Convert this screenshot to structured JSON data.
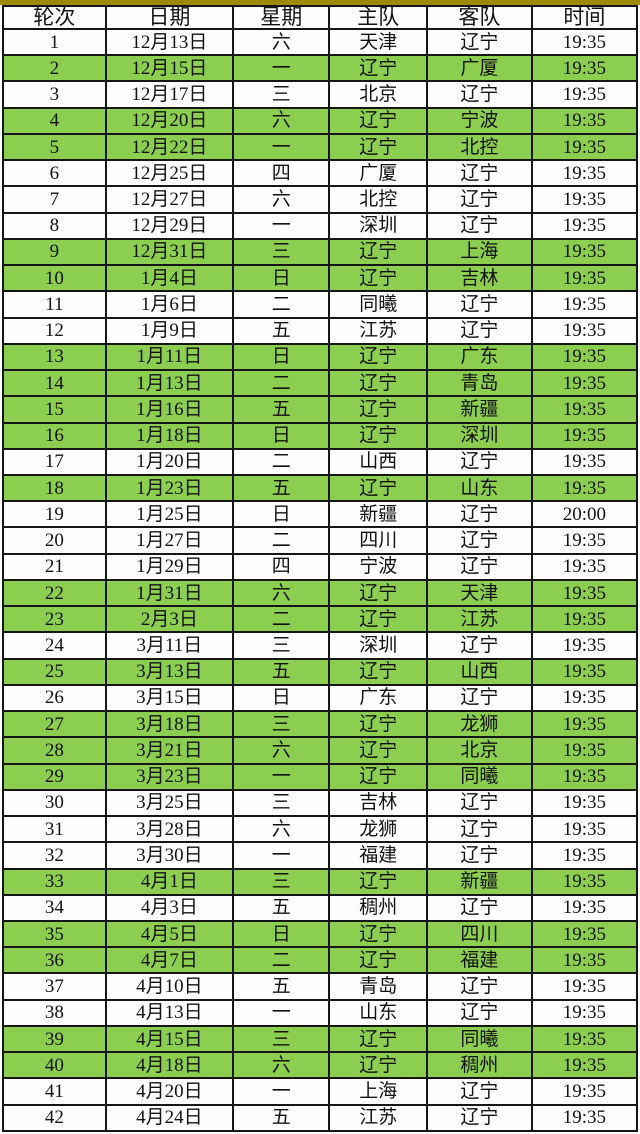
{
  "page": {
    "accent_bar_color": "#9C8A00",
    "highlight_color": "#8CCE4F",
    "highlight_meaning": "home games of 辽宁"
  },
  "table": {
    "headers": [
      "轮次",
      "日期",
      "星期",
      "主队",
      "客队",
      "时间"
    ],
    "rows": [
      {
        "round": "1",
        "date": "12月13日",
        "weekday": "六",
        "home": "天津",
        "away": "辽宁",
        "time": "19:35",
        "highlight": false
      },
      {
        "round": "2",
        "date": "12月15日",
        "weekday": "一",
        "home": "辽宁",
        "away": "广厦",
        "time": "19:35",
        "highlight": true
      },
      {
        "round": "3",
        "date": "12月17日",
        "weekday": "三",
        "home": "北京",
        "away": "辽宁",
        "time": "19:35",
        "highlight": false
      },
      {
        "round": "4",
        "date": "12月20日",
        "weekday": "六",
        "home": "辽宁",
        "away": "宁波",
        "time": "19:35",
        "highlight": true
      },
      {
        "round": "5",
        "date": "12月22日",
        "weekday": "一",
        "home": "辽宁",
        "away": "北控",
        "time": "19:35",
        "highlight": true
      },
      {
        "round": "6",
        "date": "12月25日",
        "weekday": "四",
        "home": "广厦",
        "away": "辽宁",
        "time": "19:35",
        "highlight": false
      },
      {
        "round": "7",
        "date": "12月27日",
        "weekday": "六",
        "home": "北控",
        "away": "辽宁",
        "time": "19:35",
        "highlight": false
      },
      {
        "round": "8",
        "date": "12月29日",
        "weekday": "一",
        "home": "深圳",
        "away": "辽宁",
        "time": "19:35",
        "highlight": false
      },
      {
        "round": "9",
        "date": "12月31日",
        "weekday": "三",
        "home": "辽宁",
        "away": "上海",
        "time": "19:35",
        "highlight": true
      },
      {
        "round": "10",
        "date": "1月4日",
        "weekday": "日",
        "home": "辽宁",
        "away": "吉林",
        "time": "19:35",
        "highlight": true
      },
      {
        "round": "11",
        "date": "1月6日",
        "weekday": "二",
        "home": "同曦",
        "away": "辽宁",
        "time": "19:35",
        "highlight": false
      },
      {
        "round": "12",
        "date": "1月9日",
        "weekday": "五",
        "home": "江苏",
        "away": "辽宁",
        "time": "19:35",
        "highlight": false
      },
      {
        "round": "13",
        "date": "1月11日",
        "weekday": "日",
        "home": "辽宁",
        "away": "广东",
        "time": "19:35",
        "highlight": true
      },
      {
        "round": "14",
        "date": "1月13日",
        "weekday": "二",
        "home": "辽宁",
        "away": "青岛",
        "time": "19:35",
        "highlight": true
      },
      {
        "round": "15",
        "date": "1月16日",
        "weekday": "五",
        "home": "辽宁",
        "away": "新疆",
        "time": "19:35",
        "highlight": true
      },
      {
        "round": "16",
        "date": "1月18日",
        "weekday": "日",
        "home": "辽宁",
        "away": "深圳",
        "time": "19:35",
        "highlight": true
      },
      {
        "round": "17",
        "date": "1月20日",
        "weekday": "二",
        "home": "山西",
        "away": "辽宁",
        "time": "19:35",
        "highlight": false
      },
      {
        "round": "18",
        "date": "1月23日",
        "weekday": "五",
        "home": "辽宁",
        "away": "山东",
        "time": "19:35",
        "highlight": true
      },
      {
        "round": "19",
        "date": "1月25日",
        "weekday": "日",
        "home": "新疆",
        "away": "辽宁",
        "time": "20:00",
        "highlight": false
      },
      {
        "round": "20",
        "date": "1月27日",
        "weekday": "二",
        "home": "四川",
        "away": "辽宁",
        "time": "19:35",
        "highlight": false
      },
      {
        "round": "21",
        "date": "1月29日",
        "weekday": "四",
        "home": "宁波",
        "away": "辽宁",
        "time": "19:35",
        "highlight": false
      },
      {
        "round": "22",
        "date": "1月31日",
        "weekday": "六",
        "home": "辽宁",
        "away": "天津",
        "time": "19:35",
        "highlight": true
      },
      {
        "round": "23",
        "date": "2月3日",
        "weekday": "二",
        "home": "辽宁",
        "away": "江苏",
        "time": "19:35",
        "highlight": true
      },
      {
        "round": "24",
        "date": "3月11日",
        "weekday": "三",
        "home": "深圳",
        "away": "辽宁",
        "time": "19:35",
        "highlight": false
      },
      {
        "round": "25",
        "date": "3月13日",
        "weekday": "五",
        "home": "辽宁",
        "away": "山西",
        "time": "19:35",
        "highlight": true
      },
      {
        "round": "26",
        "date": "3月15日",
        "weekday": "日",
        "home": "广东",
        "away": "辽宁",
        "time": "19:35",
        "highlight": false
      },
      {
        "round": "27",
        "date": "3月18日",
        "weekday": "三",
        "home": "辽宁",
        "away": "龙狮",
        "time": "19:35",
        "highlight": true
      },
      {
        "round": "28",
        "date": "3月21日",
        "weekday": "六",
        "home": "辽宁",
        "away": "北京",
        "time": "19:35",
        "highlight": true
      },
      {
        "round": "29",
        "date": "3月23日",
        "weekday": "一",
        "home": "辽宁",
        "away": "同曦",
        "time": "19:35",
        "highlight": true
      },
      {
        "round": "30",
        "date": "3月25日",
        "weekday": "三",
        "home": "吉林",
        "away": "辽宁",
        "time": "19:35",
        "highlight": false
      },
      {
        "round": "31",
        "date": "3月28日",
        "weekday": "六",
        "home": "龙狮",
        "away": "辽宁",
        "time": "19:35",
        "highlight": false
      },
      {
        "round": "32",
        "date": "3月30日",
        "weekday": "一",
        "home": "福建",
        "away": "辽宁",
        "time": "19:35",
        "highlight": false
      },
      {
        "round": "33",
        "date": "4月1日",
        "weekday": "三",
        "home": "辽宁",
        "away": "新疆",
        "time": "19:35",
        "highlight": true
      },
      {
        "round": "34",
        "date": "4月3日",
        "weekday": "五",
        "home": "稠州",
        "away": "辽宁",
        "time": "19:35",
        "highlight": false
      },
      {
        "round": "35",
        "date": "4月5日",
        "weekday": "日",
        "home": "辽宁",
        "away": "四川",
        "time": "19:35",
        "highlight": true
      },
      {
        "round": "36",
        "date": "4月7日",
        "weekday": "二",
        "home": "辽宁",
        "away": "福建",
        "time": "19:35",
        "highlight": true
      },
      {
        "round": "37",
        "date": "4月10日",
        "weekday": "五",
        "home": "青岛",
        "away": "辽宁",
        "time": "19:35",
        "highlight": false
      },
      {
        "round": "38",
        "date": "4月13日",
        "weekday": "一",
        "home": "山东",
        "away": "辽宁",
        "time": "19:35",
        "highlight": false
      },
      {
        "round": "39",
        "date": "4月15日",
        "weekday": "三",
        "home": "辽宁",
        "away": "同曦",
        "time": "19:35",
        "highlight": true
      },
      {
        "round": "40",
        "date": "4月18日",
        "weekday": "六",
        "home": "辽宁",
        "away": "稠州",
        "time": "19:35",
        "highlight": true
      },
      {
        "round": "41",
        "date": "4月20日",
        "weekday": "一",
        "home": "上海",
        "away": "辽宁",
        "time": "19:35",
        "highlight": false
      },
      {
        "round": "42",
        "date": "4月24日",
        "weekday": "五",
        "home": "江苏",
        "away": "辽宁",
        "time": "19:35",
        "highlight": false
      }
    ]
  }
}
